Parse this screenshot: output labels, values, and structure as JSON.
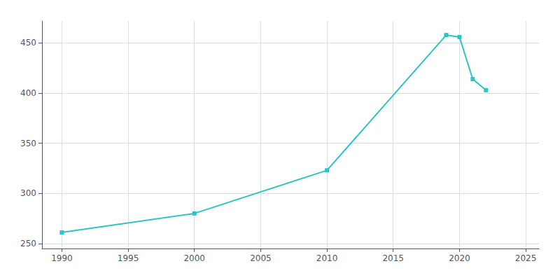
{
  "chart_data": {
    "type": "line",
    "x": [
      1990,
      2000,
      2010,
      2019,
      2020,
      2021,
      2022
    ],
    "values": [
      261,
      280,
      323,
      458,
      456,
      414,
      403
    ],
    "color": "#2EC4C4",
    "marker": "square",
    "xlim": [
      1988.5,
      2026
    ],
    "ylim": [
      245,
      472
    ],
    "xticks": [
      1990,
      1995,
      2000,
      2005,
      2010,
      2015,
      2020,
      2025
    ],
    "yticks": [
      250,
      300,
      350,
      400,
      450
    ],
    "grid": true
  }
}
